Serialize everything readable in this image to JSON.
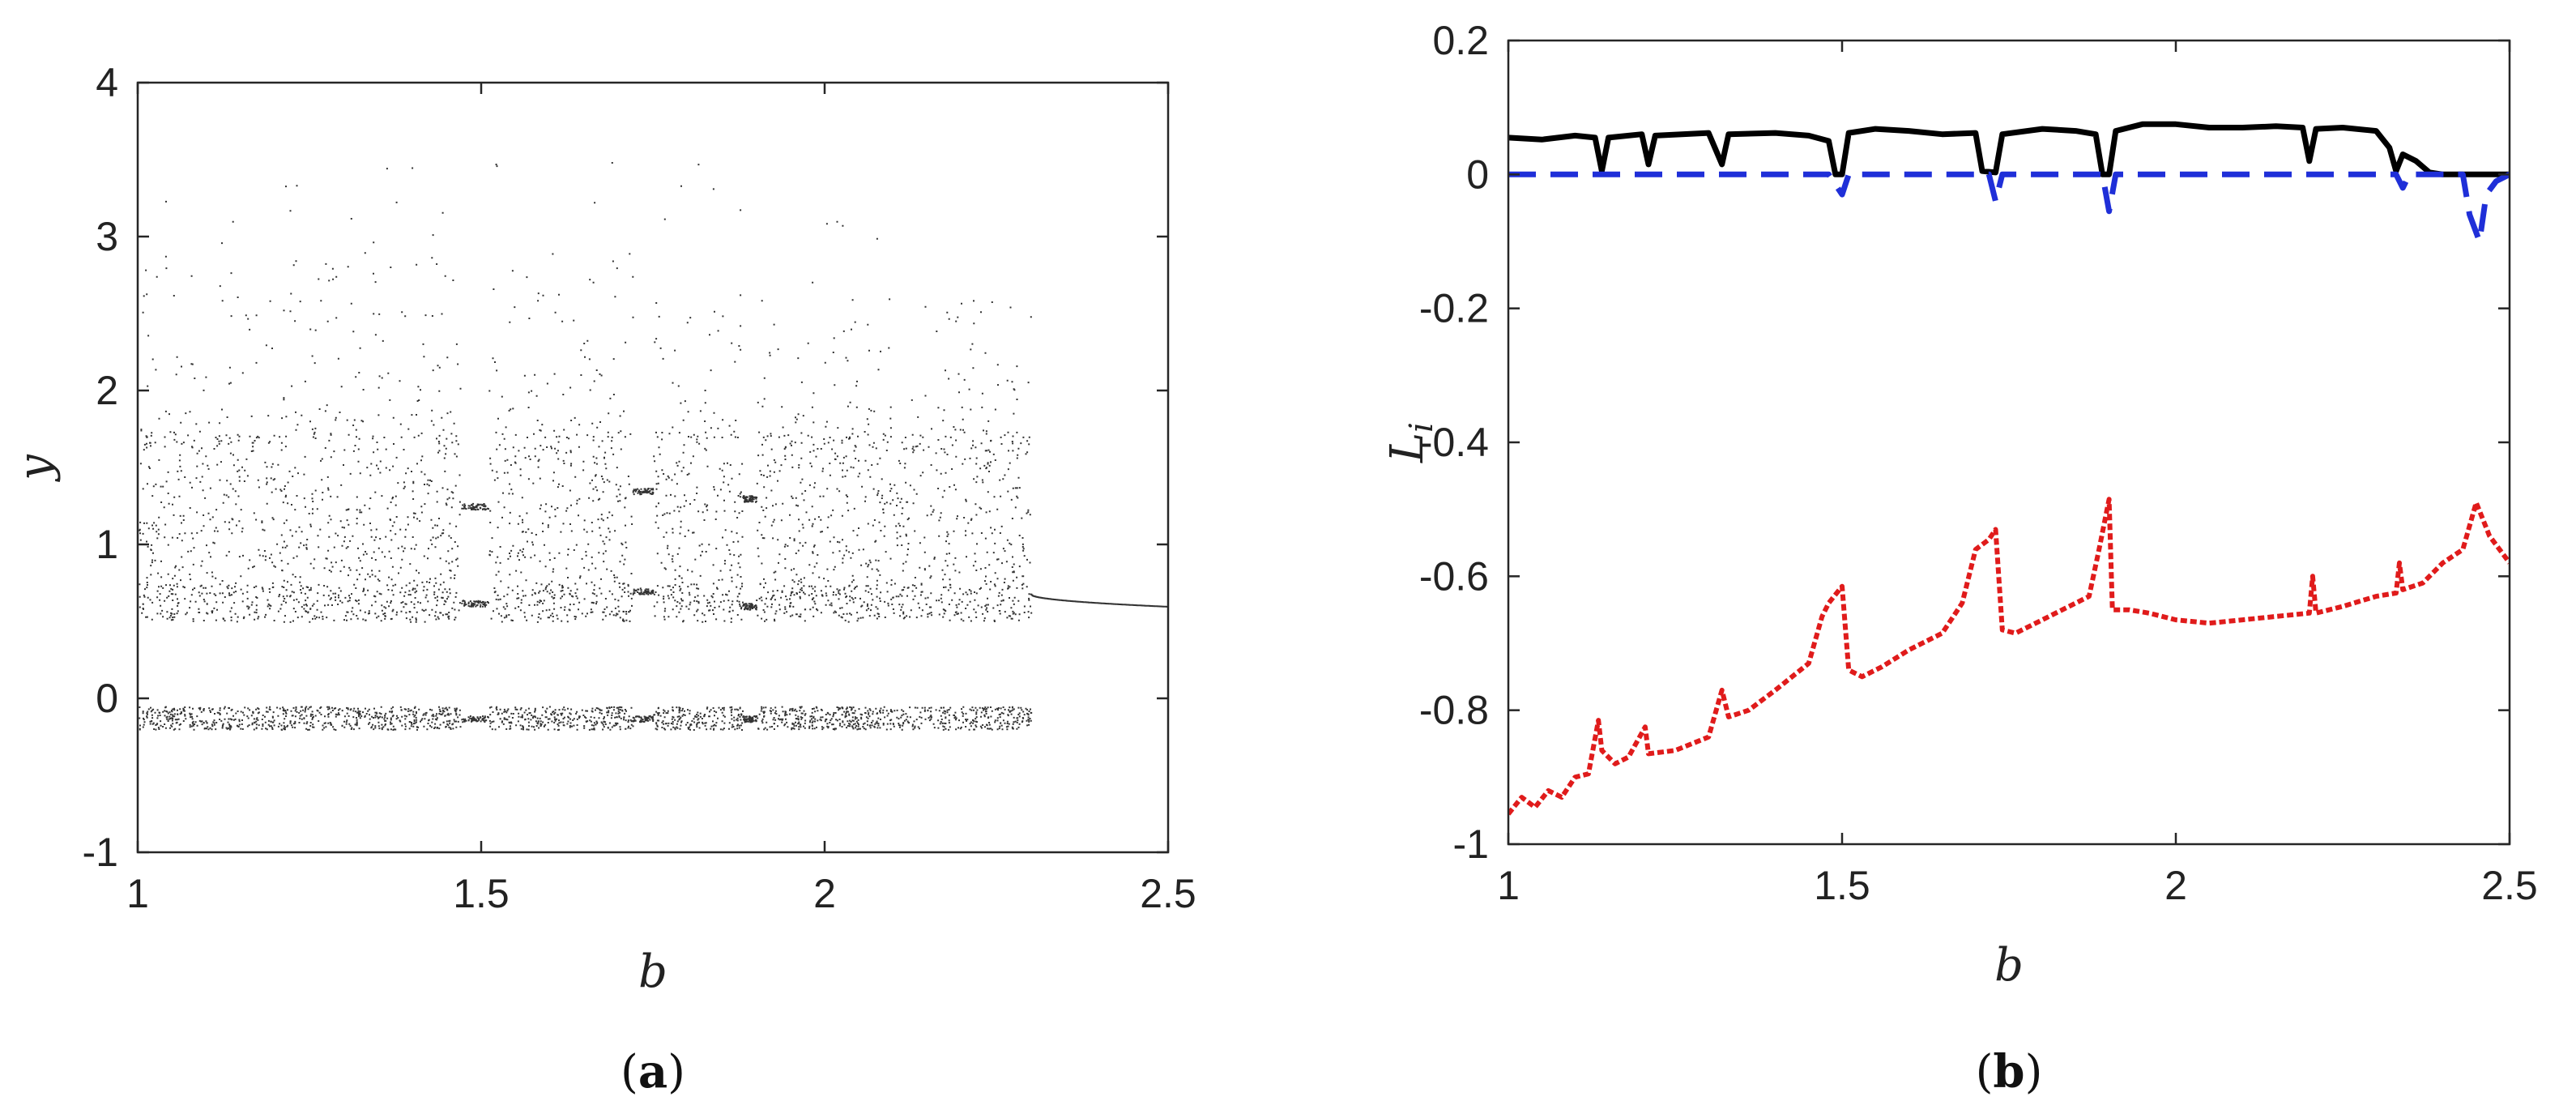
{
  "chart_data": [
    {
      "panel": "(a)",
      "panel_letter": "a",
      "type": "scatter",
      "title": "",
      "xlabel": "b",
      "ylabel": "y",
      "xlim": [
        1,
        2.5
      ],
      "ylim": [
        -1,
        4
      ],
      "x_ticks": [
        1,
        1.5,
        2,
        2.5
      ],
      "x_tick_labels": [
        "1",
        "1.5",
        "2",
        "2.5"
      ],
      "y_ticks": [
        -1,
        0,
        1,
        2,
        3,
        4
      ],
      "y_tick_labels": [
        "-1",
        "0",
        "1",
        "2",
        "3",
        "4"
      ],
      "grid": false,
      "point_color": "#333333",
      "description_of_data": [
        {
          "b_range": [
            1.0,
            1.47
          ],
          "upper_band_y": [
            0.5,
            2.6
          ],
          "lower_band_y": [
            -0.2,
            -0.05
          ]
        },
        {
          "b_range": [
            1.47,
            1.51
          ],
          "periodic_window_y": [
            1.25,
            0.62,
            -0.13
          ]
        },
        {
          "b_range": [
            1.51,
            1.72
          ],
          "upper_band_y": [
            0.5,
            2.6
          ],
          "lower_band_y": [
            -0.2,
            -0.05
          ]
        },
        {
          "b_range": [
            1.72,
            1.75
          ],
          "periodic_window_y": [
            1.35,
            0.7,
            -0.13
          ]
        },
        {
          "b_range": [
            1.75,
            1.88
          ],
          "upper_band_y": [
            0.5,
            2.3
          ],
          "lower_band_y": [
            -0.2,
            -0.05
          ]
        },
        {
          "b_range": [
            1.88,
            1.9
          ],
          "periodic_window_y": [
            1.3,
            0.6,
            -0.13
          ]
        },
        {
          "b_range": [
            1.9,
            2.3
          ],
          "upper_band_y": [
            0.5,
            2.3
          ],
          "lower_band_y": [
            -0.2,
            -0.05
          ]
        },
        {
          "b_range": [
            2.3,
            2.5
          ],
          "fixed_point_y": [
            0.68,
            0.6
          ]
        }
      ]
    },
    {
      "panel": "(b)",
      "panel_letter": "b",
      "type": "line",
      "title": "",
      "xlabel": "b",
      "ylabel": "L",
      "ylabel_subscript": "i",
      "xlim": [
        1,
        2.5
      ],
      "ylim": [
        -1,
        0.2
      ],
      "x_ticks": [
        1,
        1.5,
        2,
        2.5
      ],
      "x_tick_labels": [
        "1",
        "1.5",
        "2",
        "2.5"
      ],
      "y_ticks": [
        -1,
        -0.8,
        -0.6,
        -0.4,
        -0.2,
        0,
        0.2
      ],
      "y_tick_labels": [
        "-1",
        "-0.8",
        "-0.6",
        "-0.4",
        "-0.2",
        "0",
        "0.2"
      ],
      "grid": false,
      "series": [
        {
          "color": "#000000",
          "style": "solid",
          "points": [
            [
              1.0,
              0.055
            ],
            [
              1.05,
              0.052
            ],
            [
              1.1,
              0.058
            ],
            [
              1.13,
              0.055
            ],
            [
              1.14,
              0.005
            ],
            [
              1.15,
              0.055
            ],
            [
              1.2,
              0.06
            ],
            [
              1.21,
              0.015
            ],
            [
              1.22,
              0.058
            ],
            [
              1.3,
              0.062
            ],
            [
              1.32,
              0.015
            ],
            [
              1.33,
              0.06
            ],
            [
              1.4,
              0.062
            ],
            [
              1.45,
              0.058
            ],
            [
              1.48,
              0.05
            ],
            [
              1.49,
              0.0
            ],
            [
              1.5,
              0.0
            ],
            [
              1.51,
              0.062
            ],
            [
              1.55,
              0.068
            ],
            [
              1.6,
              0.065
            ],
            [
              1.65,
              0.06
            ],
            [
              1.7,
              0.062
            ],
            [
              1.71,
              0.005
            ],
            [
              1.73,
              0.003
            ],
            [
              1.74,
              0.06
            ],
            [
              1.8,
              0.068
            ],
            [
              1.85,
              0.065
            ],
            [
              1.88,
              0.06
            ],
            [
              1.89,
              0.0
            ],
            [
              1.9,
              0.0
            ],
            [
              1.91,
              0.065
            ],
            [
              1.95,
              0.075
            ],
            [
              2.0,
              0.075
            ],
            [
              2.05,
              0.07
            ],
            [
              2.1,
              0.07
            ],
            [
              2.15,
              0.072
            ],
            [
              2.19,
              0.07
            ],
            [
              2.2,
              0.02
            ],
            [
              2.21,
              0.068
            ],
            [
              2.25,
              0.07
            ],
            [
              2.3,
              0.065
            ],
            [
              2.32,
              0.04
            ],
            [
              2.33,
              0.005
            ],
            [
              2.34,
              0.03
            ],
            [
              2.36,
              0.02
            ],
            [
              2.38,
              0.003
            ],
            [
              2.4,
              0.0
            ],
            [
              2.45,
              0.0
            ],
            [
              2.5,
              0.0
            ]
          ]
        },
        {
          "color": "#1f2fd8",
          "style": "dashed",
          "points": [
            [
              1.0,
              0.0
            ],
            [
              1.48,
              0.0
            ],
            [
              1.5,
              -0.03
            ],
            [
              1.51,
              0.0
            ],
            [
              1.72,
              0.0
            ],
            [
              1.73,
              -0.04
            ],
            [
              1.74,
              0.0
            ],
            [
              1.89,
              0.0
            ],
            [
              1.9,
              -0.055
            ],
            [
              1.91,
              0.0
            ],
            [
              2.33,
              0.0
            ],
            [
              2.34,
              -0.02
            ],
            [
              2.35,
              0.0
            ],
            [
              2.43,
              0.0
            ],
            [
              2.44,
              -0.06
            ],
            [
              2.455,
              -0.1
            ],
            [
              2.465,
              -0.03
            ],
            [
              2.48,
              -0.01
            ],
            [
              2.5,
              0.0
            ]
          ]
        },
        {
          "color": "#e01b1b",
          "style": "dotted",
          "points": [
            [
              1.0,
              -0.955
            ],
            [
              1.02,
              -0.93
            ],
            [
              1.04,
              -0.945
            ],
            [
              1.06,
              -0.92
            ],
            [
              1.08,
              -0.93
            ],
            [
              1.1,
              -0.9
            ],
            [
              1.12,
              -0.895
            ],
            [
              1.135,
              -0.815
            ],
            [
              1.14,
              -0.86
            ],
            [
              1.16,
              -0.88
            ],
            [
              1.18,
              -0.87
            ],
            [
              1.205,
              -0.825
            ],
            [
              1.21,
              -0.865
            ],
            [
              1.25,
              -0.86
            ],
            [
              1.3,
              -0.84
            ],
            [
              1.32,
              -0.77
            ],
            [
              1.33,
              -0.81
            ],
            [
              1.36,
              -0.8
            ],
            [
              1.4,
              -0.77
            ],
            [
              1.45,
              -0.73
            ],
            [
              1.47,
              -0.66
            ],
            [
              1.48,
              -0.64
            ],
            [
              1.5,
              -0.615
            ],
            [
              1.51,
              -0.74
            ],
            [
              1.53,
              -0.75
            ],
            [
              1.56,
              -0.735
            ],
            [
              1.6,
              -0.71
            ],
            [
              1.65,
              -0.685
            ],
            [
              1.68,
              -0.64
            ],
            [
              1.7,
              -0.56
            ],
            [
              1.72,
              -0.545
            ],
            [
              1.73,
              -0.53
            ],
            [
              1.74,
              -0.68
            ],
            [
              1.76,
              -0.685
            ],
            [
              1.8,
              -0.665
            ],
            [
              1.85,
              -0.64
            ],
            [
              1.87,
              -0.63
            ],
            [
              1.885,
              -0.56
            ],
            [
              1.9,
              -0.485
            ],
            [
              1.905,
              -0.65
            ],
            [
              1.93,
              -0.65
            ],
            [
              1.96,
              -0.655
            ],
            [
              2.0,
              -0.665
            ],
            [
              2.05,
              -0.67
            ],
            [
              2.1,
              -0.665
            ],
            [
              2.15,
              -0.66
            ],
            [
              2.2,
              -0.655
            ],
            [
              2.205,
              -0.6
            ],
            [
              2.21,
              -0.655
            ],
            [
              2.25,
              -0.645
            ],
            [
              2.3,
              -0.63
            ],
            [
              2.33,
              -0.625
            ],
            [
              2.335,
              -0.58
            ],
            [
              2.34,
              -0.62
            ],
            [
              2.37,
              -0.61
            ],
            [
              2.4,
              -0.58
            ],
            [
              2.43,
              -0.56
            ],
            [
              2.45,
              -0.49
            ],
            [
              2.47,
              -0.54
            ],
            [
              2.5,
              -0.58
            ]
          ]
        }
      ]
    }
  ]
}
